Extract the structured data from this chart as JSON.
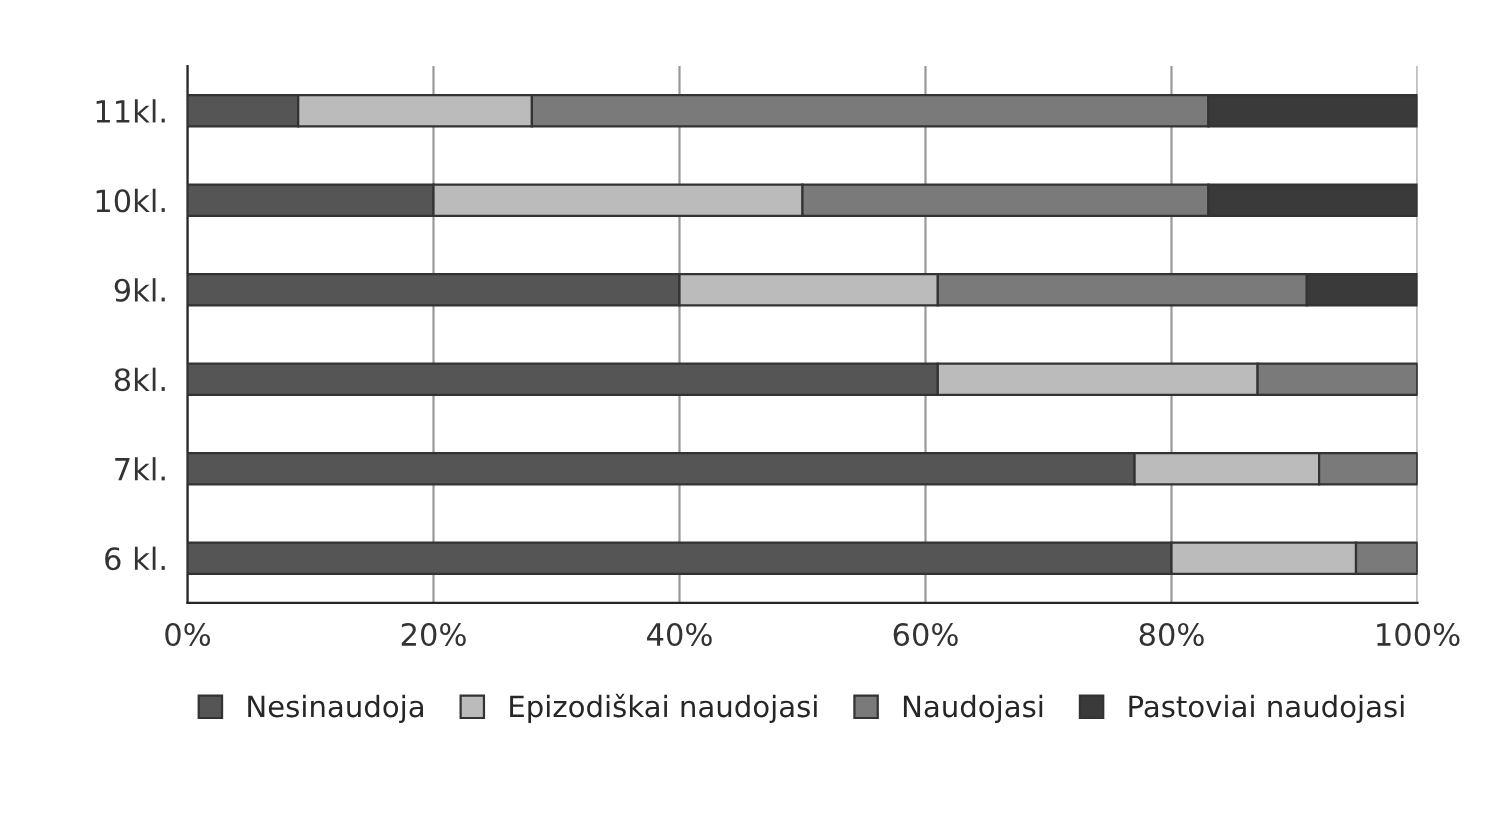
{
  "chart_data": {
    "type": "bar",
    "orientation": "horizontal",
    "stacked": true,
    "categories": [
      "11kl.",
      "10kl.",
      "9kl.",
      "8kl.",
      "7kl.",
      "6 kl."
    ],
    "series": [
      {
        "name": "Nesinaudoja",
        "color": "#555555",
        "values": [
          9,
          20,
          40,
          61,
          77,
          80
        ]
      },
      {
        "name": "Epizodiškai naudojasi",
        "color": "#bbbbbb",
        "values": [
          19,
          30,
          21,
          26,
          15,
          15
        ]
      },
      {
        "name": "Naudojasi",
        "color": "#7a7a7a",
        "values": [
          55,
          33,
          30,
          13,
          8,
          5
        ]
      },
      {
        "name": "Pastoviai naudojasi",
        "color": "#3a3a3a",
        "values": [
          17,
          17,
          9,
          0,
          0,
          0
        ]
      }
    ],
    "xlim": [
      0,
      100
    ],
    "xticks": [
      {
        "value": 0,
        "label": "0%"
      },
      {
        "value": 20,
        "label": "20%"
      },
      {
        "value": 40,
        "label": "40%"
      },
      {
        "value": 60,
        "label": "60%"
      },
      {
        "value": 80,
        "label": "80%"
      },
      {
        "value": 100,
        "label": "100%"
      }
    ],
    "grid": "x",
    "legend": "bottom"
  }
}
